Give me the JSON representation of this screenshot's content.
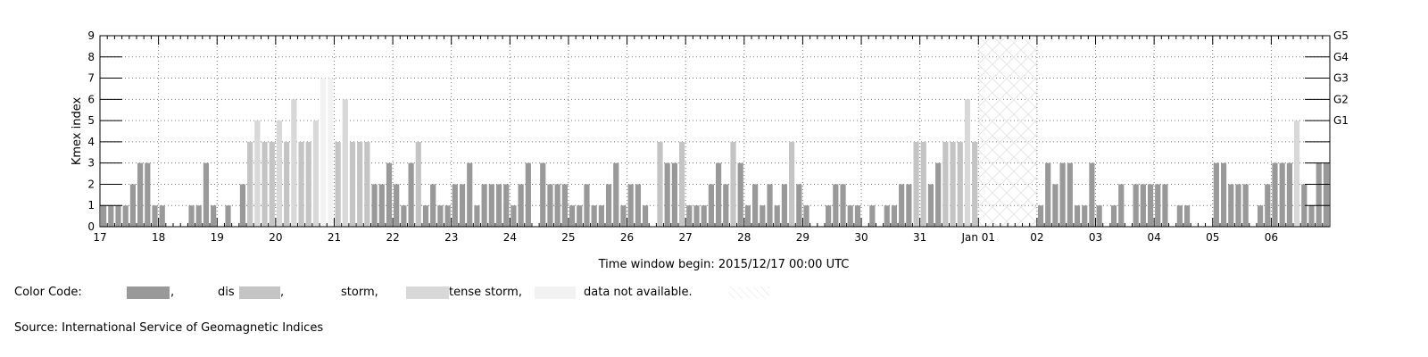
{
  "chart_data": {
    "type": "bar",
    "ylabel": "Kmex index",
    "xlabel": "Time window begin: 2015/12/17 00:00 UTC",
    "ylim": [
      0,
      9
    ],
    "yticks": [
      "0",
      "1",
      "2",
      "3",
      "4",
      "5",
      "6",
      "7",
      "8",
      "9"
    ],
    "right_axis": [
      {
        "label": "G1",
        "value": 5
      },
      {
        "label": "G2",
        "value": 6
      },
      {
        "label": "G3",
        "value": 7
      },
      {
        "label": "G4",
        "value": 8
      },
      {
        "label": "G5",
        "value": 9
      }
    ],
    "day_labels": [
      "17",
      "18",
      "19",
      "20",
      "21",
      "22",
      "23",
      "24",
      "25",
      "26",
      "27",
      "28",
      "29",
      "30",
      "31",
      "Jan 01",
      "02",
      "03",
      "04",
      "05",
      "06"
    ],
    "bins_per_day": 8,
    "grid": true,
    "missing_range": [
      120,
      127
    ],
    "series": [
      {
        "values": [
          1,
          1,
          1,
          1,
          2,
          3,
          3,
          1,
          1,
          0,
          0,
          0,
          1,
          1,
          3,
          1,
          0,
          1,
          0,
          2,
          4,
          5,
          4,
          4,
          5,
          4,
          6,
          4,
          4,
          5,
          7,
          7,
          4,
          6,
          4,
          4,
          4,
          2,
          2,
          3,
          2,
          1,
          3,
          4,
          1,
          2,
          1,
          1,
          2,
          2,
          3,
          1,
          2,
          2,
          2,
          2,
          1,
          2,
          3,
          0,
          3,
          2,
          2,
          2,
          1,
          1,
          2,
          1,
          1,
          2,
          3,
          1,
          2,
          2,
          1,
          0,
          4,
          3,
          3,
          4,
          1,
          1,
          1,
          2,
          3,
          2,
          4,
          3,
          1,
          2,
          1,
          2,
          1,
          2,
          4,
          2,
          1,
          0,
          0,
          1,
          2,
          2,
          1,
          1,
          0,
          1,
          0,
          1,
          1,
          2,
          2,
          4,
          4,
          2,
          3,
          4,
          4,
          4,
          6,
          4,
          0,
          0,
          0,
          0,
          0,
          0,
          0,
          0,
          1,
          3,
          2,
          3,
          3,
          1,
          1,
          3,
          1,
          0,
          1,
          2,
          0,
          2,
          2,
          2,
          2,
          2,
          0,
          1,
          1,
          0,
          0,
          0,
          3,
          3,
          2,
          2,
          2,
          0,
          1,
          2,
          3,
          3,
          3,
          5,
          2,
          1,
          3,
          3
        ]
      }
    ]
  },
  "legend": {
    "title": "Color Code:",
    "items": [
      {
        "text": ",",
        "color": "#999999"
      },
      {
        "text": "dis",
        "color": "#c4c4c4"
      },
      {
        "text": ",",
        "color": "#c4c4c4"
      },
      {
        "text": "storm,",
        "color": "#d8d8d8"
      },
      {
        "text": "tense storm,",
        "color": "#f2f2f2"
      },
      {
        "text": "data not available.",
        "color": "#ffffff"
      }
    ]
  },
  "source": "Source: International Service of Geomagnetic Indices"
}
